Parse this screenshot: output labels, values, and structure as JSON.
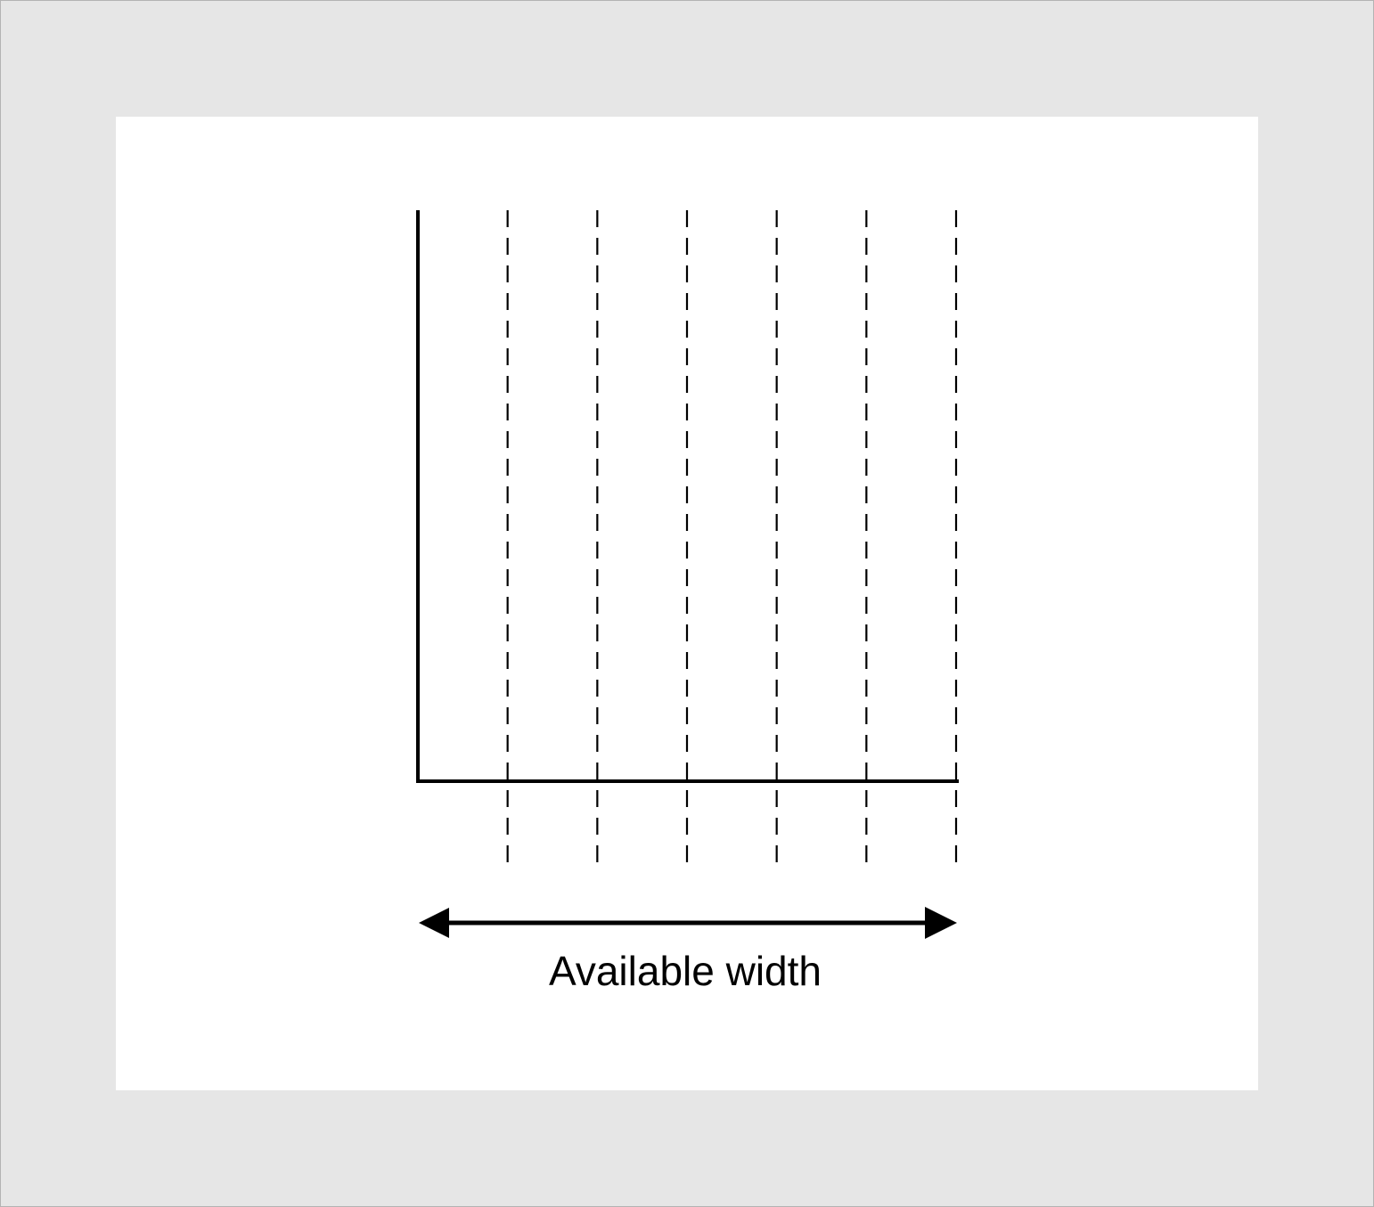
{
  "diagram": {
    "label": "Available width",
    "column_count": 6,
    "colors": {
      "background": "#e6e6e6",
      "canvas": "#ffffff",
      "ink": "#000000",
      "frame": "#b3b3b3"
    },
    "icons": [
      "double-headed-arrow"
    ]
  }
}
